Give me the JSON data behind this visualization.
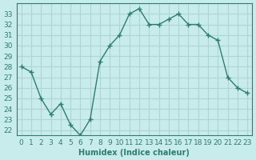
{
  "x": [
    0,
    1,
    2,
    3,
    4,
    5,
    6,
    7,
    8,
    9,
    10,
    11,
    12,
    13,
    14,
    15,
    16,
    17,
    18,
    19,
    20,
    21,
    22,
    23
  ],
  "y": [
    28,
    27.5,
    25,
    23.5,
    24.5,
    22.5,
    21.5,
    23,
    28.5,
    30,
    31,
    33,
    33.5,
    32,
    32,
    32.5,
    33,
    32,
    32,
    31,
    30.5,
    27,
    26,
    25.5
  ],
  "line_color": "#2e7d6e",
  "marker": "+",
  "bg_color": "#c8ecec",
  "grid_color": "#aed4d4",
  "xlabel": "Humidex (Indice chaleur)",
  "ylim": [
    21.5,
    34
  ],
  "xlim": [
    -0.5,
    23.5
  ],
  "yticks": [
    22,
    23,
    24,
    25,
    26,
    27,
    28,
    29,
    30,
    31,
    32,
    33
  ],
  "xticks": [
    0,
    1,
    2,
    3,
    4,
    5,
    6,
    7,
    8,
    9,
    10,
    11,
    12,
    13,
    14,
    15,
    16,
    17,
    18,
    19,
    20,
    21,
    22,
    23
  ],
  "tick_color": "#2e7d6e",
  "font_color": "#2e7d6e",
  "fontsize": 6.5
}
